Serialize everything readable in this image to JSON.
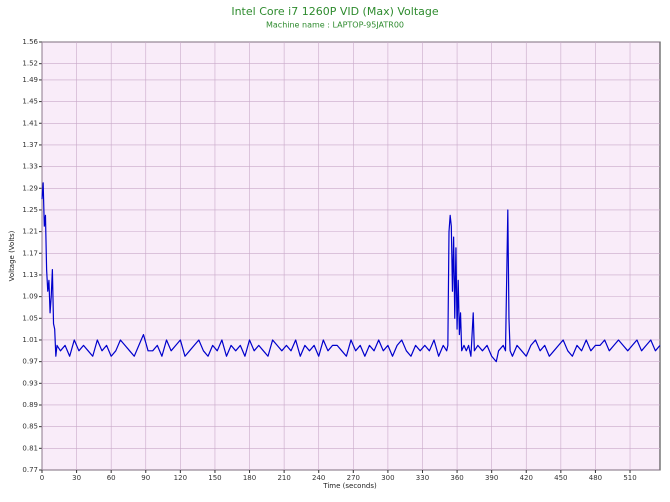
{
  "chart_data": {
    "type": "line",
    "title": "Intel Core i7 1260P VID (Max) Voltage",
    "subtitle": "Machine name : LAPTOP-95JATR00",
    "x_label": "Time (seconds)",
    "y_label": "Voltage (Volts)",
    "color": "#0000cc",
    "grid": true,
    "xlim": [
      0,
      536
    ],
    "ylim": [
      0.77,
      1.56
    ],
    "xticks": [
      0,
      30,
      60,
      90,
      120,
      150,
      180,
      210,
      240,
      270,
      300,
      330,
      360,
      390,
      420,
      450,
      480,
      510
    ],
    "yticks": [
      0.77,
      0.81,
      0.85,
      0.89,
      0.93,
      0.97,
      1.01,
      1.05,
      1.09,
      1.13,
      1.17,
      1.21,
      1.25,
      1.29,
      1.33,
      1.37,
      1.41,
      1.45,
      1.49,
      1.52,
      1.56
    ],
    "x": [
      0,
      1,
      2,
      3,
      4,
      5,
      6,
      7,
      8,
      9,
      10,
      11,
      12,
      13,
      16,
      20,
      24,
      28,
      32,
      36,
      40,
      44,
      48,
      52,
      56,
      60,
      64,
      68,
      72,
      76,
      80,
      84,
      88,
      92,
      96,
      100,
      104,
      108,
      112,
      116,
      120,
      124,
      128,
      132,
      136,
      140,
      144,
      148,
      152,
      156,
      160,
      164,
      168,
      172,
      176,
      180,
      184,
      188,
      192,
      196,
      200,
      204,
      208,
      212,
      216,
      220,
      224,
      228,
      232,
      236,
      240,
      244,
      248,
      252,
      256,
      260,
      264,
      268,
      272,
      276,
      280,
      284,
      288,
      292,
      296,
      300,
      304,
      308,
      312,
      316,
      320,
      324,
      328,
      332,
      336,
      340,
      344,
      348,
      351,
      352,
      353,
      354,
      355,
      356,
      357,
      358,
      359,
      360,
      361,
      362,
      363,
      364,
      366,
      368,
      370,
      372,
      374,
      375,
      378,
      382,
      386,
      390,
      394,
      396,
      400,
      402,
      403,
      404,
      405,
      406,
      408,
      412,
      416,
      420,
      424,
      428,
      432,
      436,
      440,
      444,
      448,
      452,
      456,
      460,
      464,
      468,
      472,
      476,
      480,
      484,
      488,
      492,
      496,
      500,
      504,
      508,
      512,
      516,
      520,
      524,
      528,
      532,
      536
    ],
    "values": [
      1.27,
      1.3,
      1.22,
      1.24,
      1.14,
      1.1,
      1.12,
      1.06,
      1.09,
      1.14,
      1.04,
      1.03,
      0.98,
      1.0,
      0.99,
      1.0,
      0.98,
      1.01,
      0.99,
      1.0,
      0.99,
      0.98,
      1.01,
      0.99,
      1.0,
      0.98,
      0.99,
      1.01,
      1.0,
      0.99,
      0.98,
      1.0,
      1.02,
      0.99,
      0.99,
      1.0,
      0.98,
      1.01,
      0.99,
      1.0,
      1.01,
      0.98,
      0.99,
      1.0,
      1.01,
      0.99,
      0.98,
      1.0,
      0.99,
      1.01,
      0.98,
      1.0,
      0.99,
      1.0,
      0.98,
      1.01,
      0.99,
      1.0,
      0.99,
      0.98,
      1.01,
      1.0,
      0.99,
      1.0,
      0.99,
      1.01,
      0.98,
      1.0,
      0.99,
      1.0,
      0.98,
      1.01,
      0.99,
      1.0,
      1.0,
      0.99,
      0.98,
      1.01,
      0.99,
      1.0,
      0.98,
      1.0,
      0.99,
      1.01,
      0.99,
      1.0,
      0.98,
      1.0,
      1.01,
      0.99,
      0.98,
      1.0,
      0.99,
      1.0,
      0.99,
      1.01,
      0.98,
      1.0,
      0.99,
      1.0,
      1.21,
      1.24,
      1.22,
      1.1,
      1.2,
      1.05,
      1.18,
      1.03,
      1.12,
      1.02,
      1.06,
      0.99,
      1.0,
      0.99,
      1.0,
      0.98,
      1.06,
      0.99,
      1.0,
      0.99,
      1.0,
      0.98,
      0.97,
      0.99,
      1.0,
      0.99,
      1.12,
      1.25,
      1.05,
      0.99,
      0.98,
      1.0,
      0.99,
      0.98,
      1.0,
      1.01,
      0.99,
      1.0,
      0.98,
      0.99,
      1.0,
      1.01,
      0.99,
      0.98,
      1.0,
      0.99,
      1.01,
      0.99,
      1.0,
      1.0,
      1.01,
      0.99,
      1.0,
      1.01,
      1.0,
      0.99,
      1.0,
      1.01,
      0.99,
      1.0,
      1.01,
      0.99,
      1.0
    ]
  }
}
